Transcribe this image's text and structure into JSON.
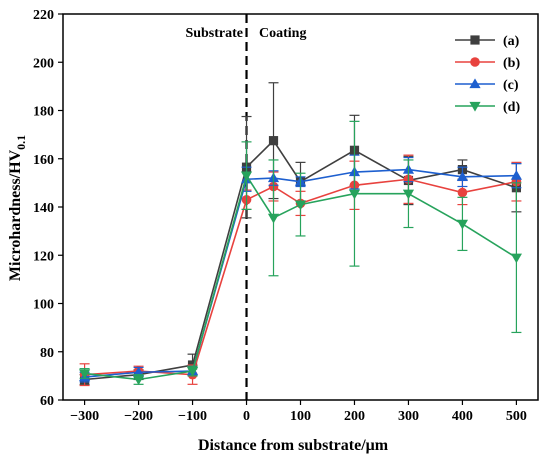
{
  "chart_data": {
    "type": "line",
    "title": "",
    "xlabel": "Distance from substrate/μm",
    "ylabel": "Microhardness/HV",
    "ylabel_sub": "0.1",
    "xlim": [
      -340,
      540
    ],
    "ylim": [
      60,
      220
    ],
    "xticks": [
      -300,
      -200,
      -100,
      0,
      100,
      200,
      300,
      400,
      500
    ],
    "xtick_labels": [
      "−300",
      "−200",
      "−100",
      "0",
      "100",
      "200",
      "300",
      "400",
      "500"
    ],
    "yticks": [
      60,
      80,
      100,
      120,
      140,
      160,
      180,
      200,
      220
    ],
    "grid": false,
    "legend_position": "top-right",
    "annotations": {
      "left": "Substrate",
      "right": "Coating",
      "divider_x": 0
    },
    "x": [
      -300,
      -200,
      -100,
      0,
      50,
      100,
      200,
      300,
      400,
      500
    ],
    "series": [
      {
        "name": "(a)",
        "color": "#3f3f3f",
        "marker": "square",
        "values": [
          68.5,
          70.5,
          74.5,
          156.5,
          167.5,
          150.5,
          163.5,
          151,
          155.5,
          148
        ],
        "err": [
          2,
          2,
          4.5,
          21,
          24,
          8,
          14.5,
          10,
          4,
          10
        ]
      },
      {
        "name": "(b)",
        "color": "#e8423e",
        "marker": "circle",
        "values": [
          70.5,
          72,
          70.5,
          143,
          148.5,
          141.5,
          149,
          151.5,
          146,
          150.5
        ],
        "err": [
          4.5,
          2,
          4,
          4,
          6,
          5,
          10,
          10,
          5,
          8
        ]
      },
      {
        "name": "(c)",
        "color": "#1d5fcf",
        "marker": "triangle-up",
        "values": [
          69.5,
          71.5,
          72,
          151.5,
          152,
          150.5,
          154.5,
          155.5,
          152.5,
          153
        ],
        "err": [
          2,
          2,
          2,
          5,
          3,
          2,
          7,
          5,
          4,
          5
        ]
      },
      {
        "name": "(d)",
        "color": "#27a35c",
        "marker": "triangle-down",
        "values": [
          71,
          68.5,
          72,
          153,
          135.5,
          141,
          145.5,
          145.5,
          133,
          119
        ],
        "err": [
          2,
          2,
          2,
          14,
          24,
          13,
          30,
          14,
          11,
          31
        ]
      }
    ]
  }
}
